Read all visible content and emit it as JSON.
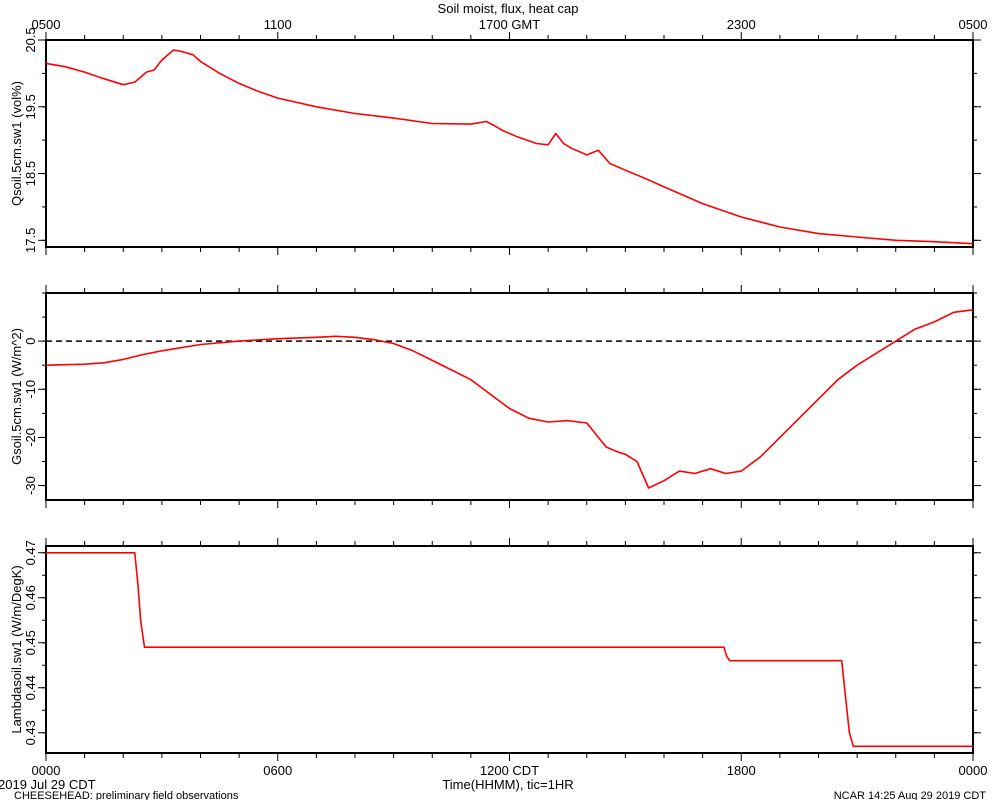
{
  "title": "Soil moist, flux, heat cap",
  "top_axis": {
    "tick_labels": [
      "0500",
      "1100",
      "1700 GMT",
      "2300",
      "0500"
    ]
  },
  "bottom_axis": {
    "tick_labels": [
      "0000",
      "0600",
      "1200 CDT",
      "1800",
      "0000"
    ],
    "xlabel": "Time(HHMM), tic=1HR",
    "date_label": "2019 Jul 29 CDT"
  },
  "footer": {
    "left": "CHEESEHEAD: preliminary field observations",
    "right": "NCAR 14:25 Aug 29 2019 CDT"
  },
  "colors": {
    "series": "#ff0000",
    "axes": "#000000",
    "zero_line": "#000000"
  },
  "chart_data": [
    {
      "type": "line",
      "ylabel": "Qsoil.5cm.sw1 (vol%)",
      "ylim": [
        17.4,
        20.5
      ],
      "yticks": [
        17.5,
        18.5,
        19.5,
        20.5
      ],
      "ytick_labels": [
        "17.5",
        "18.5",
        "19.5",
        "20.5"
      ],
      "xlim": [
        0,
        24
      ],
      "x": [
        0,
        0.5,
        1.0,
        1.5,
        2.0,
        2.3,
        2.6,
        2.8,
        3.0,
        3.3,
        3.5,
        3.8,
        4.0,
        4.5,
        5.0,
        5.5,
        6.0,
        7.0,
        8.0,
        9.0,
        10.0,
        11.0,
        11.4,
        11.6,
        11.8,
        12.2,
        12.7,
        13.0,
        13.2,
        13.4,
        13.6,
        14.0,
        14.3,
        14.6,
        15.0,
        15.5,
        16.0,
        17.0,
        18.0,
        19.0,
        20.0,
        21.0,
        22.0,
        23.0,
        24.0
      ],
      "y": [
        20.15,
        20.1,
        20.02,
        19.92,
        19.83,
        19.87,
        20.02,
        20.05,
        20.2,
        20.35,
        20.33,
        20.28,
        20.18,
        20.0,
        19.85,
        19.73,
        19.63,
        19.5,
        19.4,
        19.33,
        19.25,
        19.24,
        19.28,
        19.22,
        19.15,
        19.05,
        18.95,
        18.93,
        19.1,
        18.95,
        18.88,
        18.78,
        18.85,
        18.65,
        18.55,
        18.43,
        18.3,
        18.05,
        17.85,
        17.7,
        17.6,
        17.55,
        17.5,
        17.48,
        17.45
      ]
    },
    {
      "type": "line",
      "ylabel": "Gsoil.5cm.sw1 (W/m^2)",
      "ylim": [
        -33,
        10
      ],
      "yticks": [
        -30,
        -20,
        -10,
        0
      ],
      "ytick_labels": [
        "-30",
        "-20",
        "-10",
        "0"
      ],
      "zero_line": 0,
      "xlim": [
        0,
        24
      ],
      "x": [
        0,
        1.0,
        1.5,
        2.0,
        2.5,
        3.0,
        4.0,
        5.0,
        6.0,
        7.0,
        7.5,
        8.0,
        8.5,
        9.0,
        9.5,
        10.0,
        10.5,
        11.0,
        11.5,
        12.0,
        12.5,
        13.0,
        13.5,
        14.0,
        14.5,
        14.8,
        15.0,
        15.3,
        15.6,
        16.0,
        16.4,
        16.8,
        17.2,
        17.6,
        18.0,
        18.5,
        19.0,
        19.5,
        20.0,
        20.5,
        21.0,
        22.0,
        22.5,
        23.0,
        23.5,
        24.0
      ],
      "y": [
        -5,
        -4.8,
        -4.5,
        -3.8,
        -2.8,
        -2,
        -0.7,
        0,
        0.5,
        0.8,
        1.0,
        0.8,
        0.3,
        -0.5,
        -2.0,
        -4.0,
        -6.0,
        -8.0,
        -11.0,
        -14.0,
        -16.0,
        -16.8,
        -16.5,
        -17.0,
        -22.0,
        -23.0,
        -23.5,
        -25.0,
        -30.5,
        -29.0,
        -27.0,
        -27.5,
        -26.5,
        -27.5,
        -27.0,
        -24.0,
        -20.0,
        -16.0,
        -12.0,
        -8.0,
        -5.0,
        0,
        2.5,
        4.0,
        6.0,
        6.5
      ]
    },
    {
      "type": "line",
      "ylabel": "Lambdasoil.sw1 (W/m/DegK)",
      "ylim": [
        0.4255,
        0.4715
      ],
      "yticks": [
        0.43,
        0.44,
        0.45,
        0.46,
        0.47
      ],
      "ytick_labels": [
        "0.43",
        "0.44",
        "0.45",
        "0.46",
        "0.47"
      ],
      "xlim": [
        0,
        24
      ],
      "x": [
        0,
        2.3,
        2.38,
        2.45,
        2.55,
        2.6,
        17.55,
        17.62,
        17.7,
        20.6,
        20.7,
        20.8,
        20.9,
        24.0
      ],
      "y": [
        0.47,
        0.47,
        0.463,
        0.455,
        0.449,
        0.449,
        0.449,
        0.447,
        0.446,
        0.446,
        0.438,
        0.43,
        0.427,
        0.427
      ]
    }
  ]
}
